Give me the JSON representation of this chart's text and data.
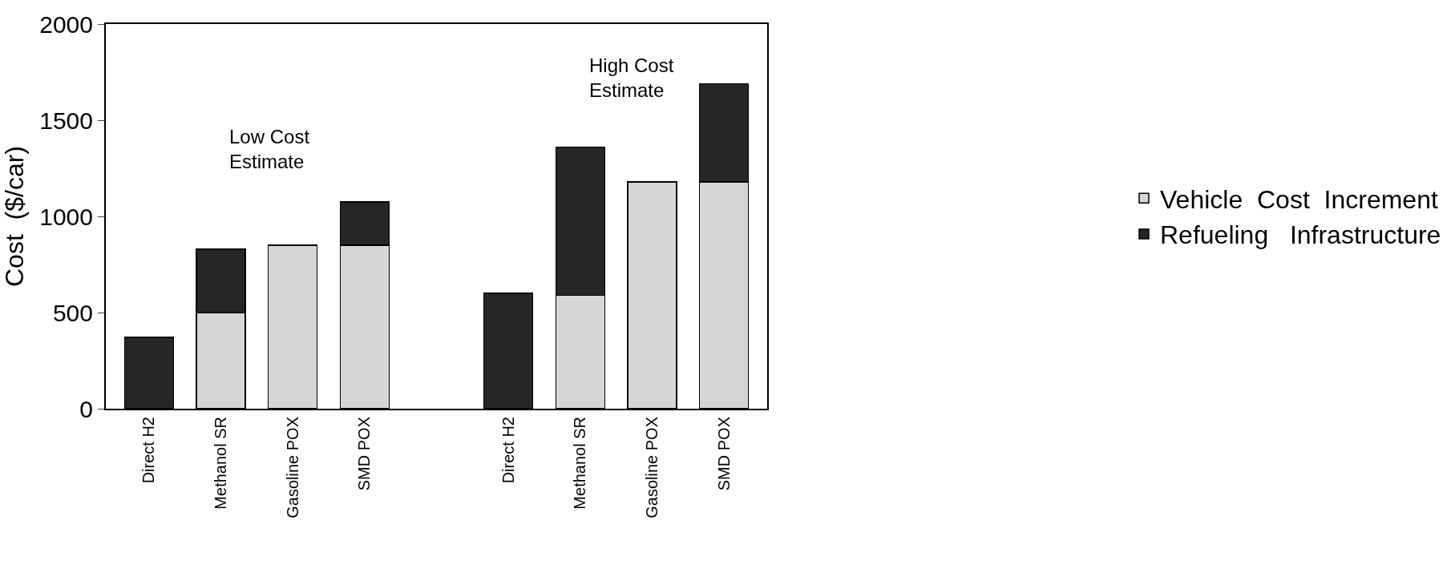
{
  "chart_data": {
    "type": "bar",
    "stacked": true,
    "ylabel": "Cost  ($/car)",
    "categories": [
      "Direct H2",
      "Methanol SR",
      "Gasoline POX",
      "SMD POX",
      null,
      "Direct H2",
      "Methanol SR",
      "Gasoline POX",
      "SMD POX"
    ],
    "series": [
      {
        "name": "Vehicle  Cost  Increment",
        "color": "#d6d6d6",
        "values": [
          null,
          500,
          850,
          850,
          null,
          null,
          590,
          1180,
          1180
        ]
      },
      {
        "name": "Refueling   Infrastructure",
        "color": "#262626",
        "values": [
          370,
          330,
          null,
          225,
          null,
          600,
          770,
          null,
          510
        ]
      }
    ],
    "ylim": [
      0,
      2000
    ],
    "yticks": [
      0,
      500,
      1000,
      1500,
      2000
    ],
    "legend": "right",
    "annotations": [
      "Low Cost\nEstimate",
      "High Cost\nEstimate"
    ]
  }
}
